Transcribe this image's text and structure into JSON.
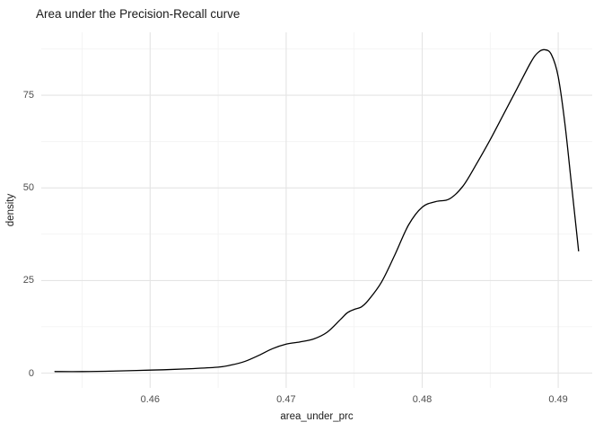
{
  "chart_data": {
    "type": "line",
    "title": "Area under the Precision-Recall curve",
    "xlabel": "area_under_prc",
    "ylabel": "density",
    "xlim": [
      0.452,
      0.4925
    ],
    "ylim": [
      -4,
      92
    ],
    "x_ticks": {
      "values": [
        0.46,
        0.47,
        0.48,
        0.49
      ],
      "labels": [
        "0.46",
        "0.47",
        "0.48",
        "0.49"
      ]
    },
    "y_ticks": {
      "values": [
        0,
        25,
        50,
        75
      ],
      "labels": [
        "0",
        "25",
        "50",
        "75"
      ]
    },
    "x_minor_ticks": [
      0.455,
      0.465,
      0.475,
      0.485
    ],
    "y_minor_ticks": [
      12.5,
      37.5,
      62.5,
      87.5
    ],
    "grid": "major+minor",
    "legend": "none",
    "colors": {
      "line": "#000000",
      "grid_major": "#e4e4e4",
      "grid_minor": "#f2f2f2",
      "background": "#ffffff",
      "tick_text": "#4d4d4d",
      "title_text": "#1a1a1a"
    },
    "series": [
      {
        "name": "density",
        "x": [
          0.453,
          0.455,
          0.457,
          0.459,
          0.461,
          0.463,
          0.465,
          0.466,
          0.467,
          0.468,
          0.469,
          0.47,
          0.471,
          0.472,
          0.473,
          0.474,
          0.4745,
          0.475,
          0.4755,
          0.476,
          0.477,
          0.478,
          0.479,
          0.48,
          0.481,
          0.482,
          0.483,
          0.484,
          0.485,
          0.486,
          0.487,
          0.488,
          0.4885,
          0.489,
          0.4895,
          0.49,
          0.4905,
          0.491,
          0.4915
        ],
        "y": [
          0.4,
          0.4,
          0.5,
          0.7,
          0.9,
          1.2,
          1.6,
          2.2,
          3.2,
          4.8,
          6.6,
          7.8,
          8.4,
          9.2,
          11.0,
          14.5,
          16.3,
          17.2,
          17.8,
          19.5,
          24.5,
          32.0,
          40.0,
          44.8,
          46.3,
          47.0,
          50.5,
          56.5,
          63.0,
          70.0,
          77.0,
          84.0,
          86.5,
          87.3,
          86.0,
          80.0,
          67.0,
          50.0,
          33.0
        ]
      }
    ]
  }
}
